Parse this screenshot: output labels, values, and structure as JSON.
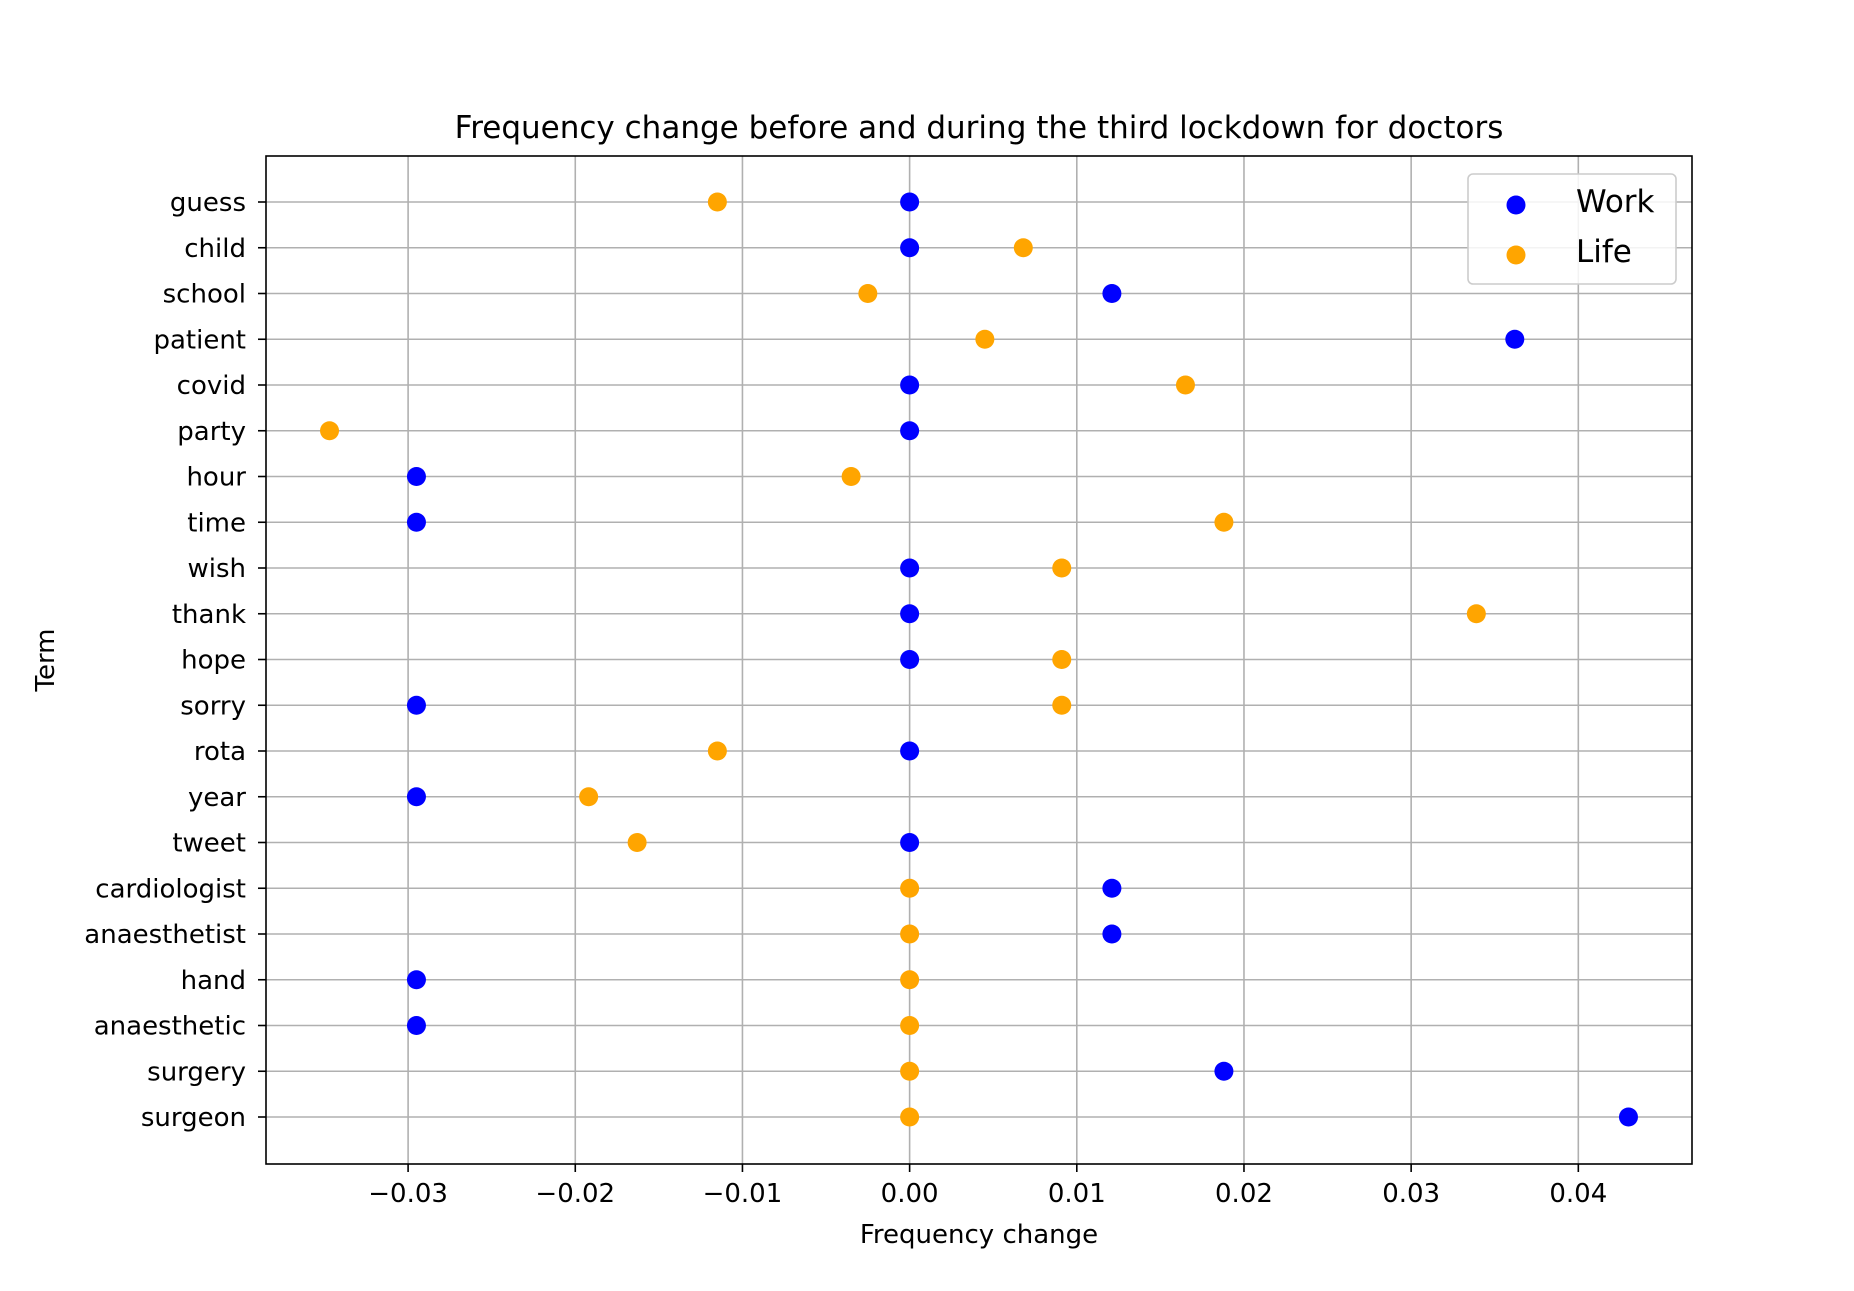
{
  "chart_data": {
    "type": "scatter",
    "title": "Frequency change before and during the third lockdown for doctors",
    "xlabel": "Frequency change",
    "ylabel": "Term",
    "xlim": [
      -0.0385,
      0.0468
    ],
    "x_ticks": [
      -0.03,
      -0.02,
      -0.01,
      0.0,
      0.01,
      0.02,
      0.03,
      0.04
    ],
    "x_tick_labels": [
      "−0.03",
      "−0.02",
      "−0.01",
      "0.00",
      "0.01",
      "0.02",
      "0.03",
      "0.04"
    ],
    "grid": true,
    "legend_position": "top-right",
    "categories": [
      "guess",
      "child",
      "school",
      "patient",
      "covid",
      "party",
      "hour",
      "time",
      "wish",
      "thank",
      "hope",
      "sorry",
      "rota",
      "year",
      "tweet",
      "cardiologist",
      "anaesthetist",
      "hand",
      "anaesthetic",
      "surgery",
      "surgeon"
    ],
    "series": [
      {
        "name": "Work",
        "color": "#0000ff",
        "values": [
          0.0,
          0.0,
          0.0121,
          0.0362,
          0.0,
          0.0,
          -0.0295,
          -0.0295,
          0.0,
          0.0,
          0.0,
          -0.0295,
          0.0,
          -0.0295,
          0.0,
          0.0121,
          0.0121,
          -0.0295,
          -0.0295,
          0.0188,
          0.043
        ]
      },
      {
        "name": "Life",
        "color": "#ffa500",
        "values": [
          -0.0115,
          0.0068,
          -0.0025,
          0.0045,
          0.0165,
          -0.0347,
          -0.0035,
          0.0188,
          0.0091,
          0.0339,
          0.0091,
          0.0091,
          -0.0115,
          -0.0192,
          -0.0163,
          0.0,
          0.0,
          0.0,
          0.0,
          0.0,
          0.0
        ]
      }
    ]
  }
}
